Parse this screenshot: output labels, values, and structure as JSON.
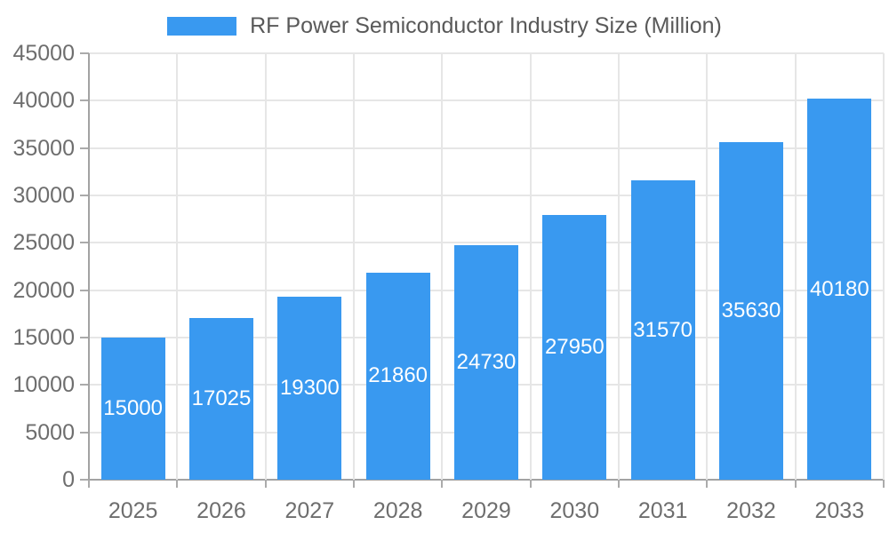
{
  "chart_data": {
    "type": "bar",
    "title": "RF Power Semiconductor Industry Size (Million)",
    "legend": {
      "position": "top",
      "label": "RF Power Semiconductor Industry Size (Million)"
    },
    "categories": [
      "2025",
      "2026",
      "2027",
      "2028",
      "2029",
      "2030",
      "2031",
      "2032",
      "2033"
    ],
    "values": [
      15000,
      17025,
      19300,
      21860,
      24730,
      27950,
      31570,
      35630,
      40180
    ],
    "value_labels": [
      "15000",
      "17025",
      "19300",
      "21860",
      "24730",
      "27950",
      "31570",
      "35630",
      "40180"
    ],
    "value_label_position": "inside-center",
    "xlabel": "",
    "ylabel": "",
    "ylim": [
      0,
      45000
    ],
    "yticks": [
      0,
      5000,
      10000,
      15000,
      20000,
      25000,
      30000,
      35000,
      40000,
      45000
    ],
    "grid": true,
    "grid_vertical": true,
    "legend_marker": "rectangle",
    "colors": {
      "bar": "#3999f0",
      "grid": "#e6e6e6",
      "axis_line": "#a3a3a3",
      "tick_mark": "#ababab",
      "axis_text": "#6e6e6e",
      "legend_text": "#595959",
      "bar_label_text": "#ffffff",
      "background": "#ffffff"
    }
  }
}
